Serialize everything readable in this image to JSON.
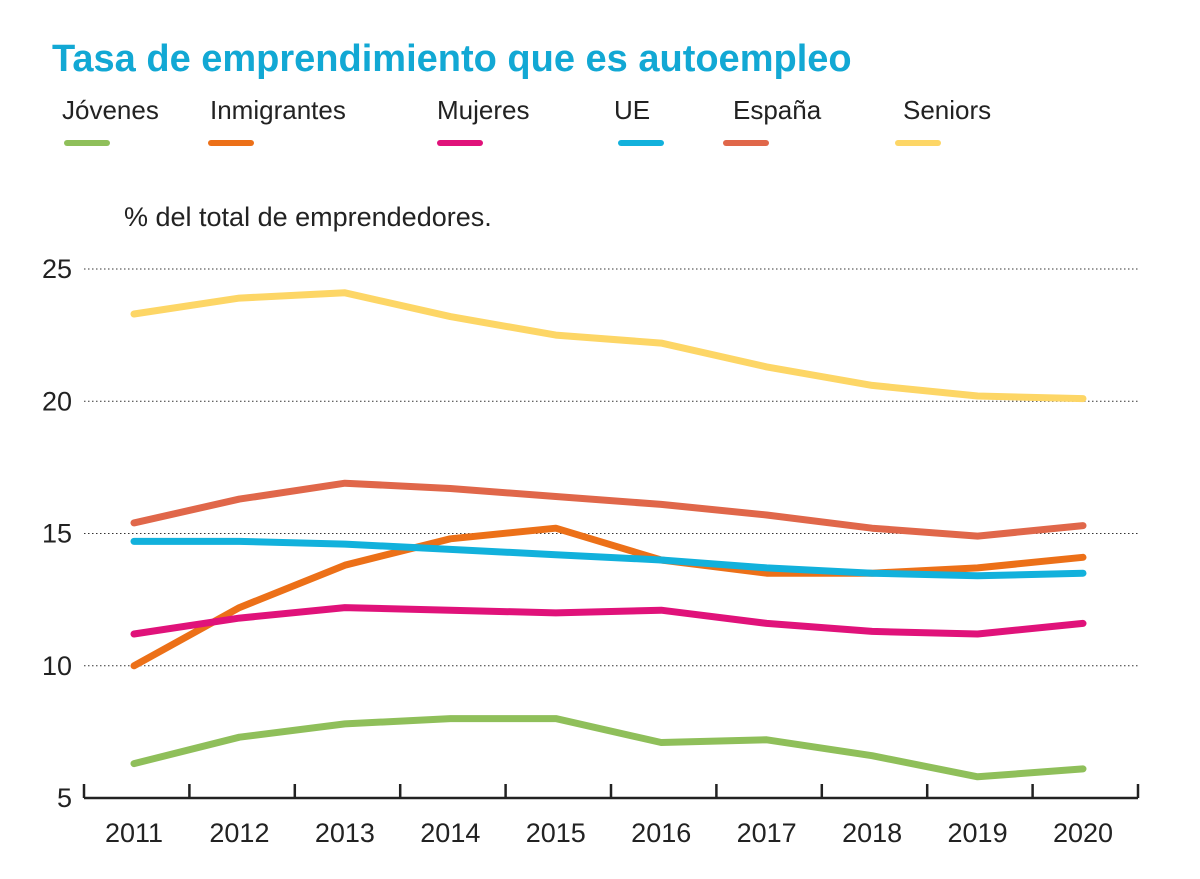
{
  "chart_data": {
    "type": "line",
    "title": "Tasa de emprendimiento que es autoempleo",
    "ylabel": "% del total de emprendedores.",
    "xlabel": "",
    "x": [
      "2011",
      "2012",
      "2013",
      "2014",
      "2015",
      "2016",
      "2017",
      "2018",
      "2019",
      "2020"
    ],
    "ylim": [
      5,
      25
    ],
    "yticks": [
      "25",
      "20",
      "15",
      "10",
      "5"
    ],
    "yticks_values": [
      25,
      20,
      15,
      10,
      5
    ],
    "grid": true,
    "legend_position": "top",
    "series": [
      {
        "name": "Jóvenes",
        "color": "#8fbf5a",
        "values": [
          6.3,
          7.3,
          7.8,
          8.0,
          8.0,
          7.1,
          7.2,
          6.6,
          5.8,
          6.1
        ]
      },
      {
        "name": "Inmigrantes",
        "color": "#ec7018",
        "values": [
          10.0,
          12.2,
          13.8,
          14.8,
          15.2,
          14.0,
          13.5,
          13.5,
          13.7,
          14.1
        ]
      },
      {
        "name": "Mujeres",
        "color": "#e0127a",
        "values": [
          11.2,
          11.8,
          12.2,
          12.1,
          12.0,
          12.1,
          11.6,
          11.3,
          11.2,
          11.6
        ]
      },
      {
        "name": "UE",
        "color": "#12b1dc",
        "values": [
          14.7,
          14.7,
          14.6,
          14.4,
          14.2,
          14.0,
          13.7,
          13.5,
          13.4,
          13.5
        ]
      },
      {
        "name": "España",
        "color": "#e0674a",
        "values": [
          15.4,
          16.3,
          16.9,
          16.7,
          16.4,
          16.1,
          15.7,
          15.2,
          14.9,
          15.3
        ]
      },
      {
        "name": "Seniors",
        "color": "#fdd666",
        "values": [
          23.3,
          23.9,
          24.1,
          23.2,
          22.5,
          22.2,
          21.3,
          20.6,
          20.2,
          20.1
        ]
      }
    ]
  }
}
